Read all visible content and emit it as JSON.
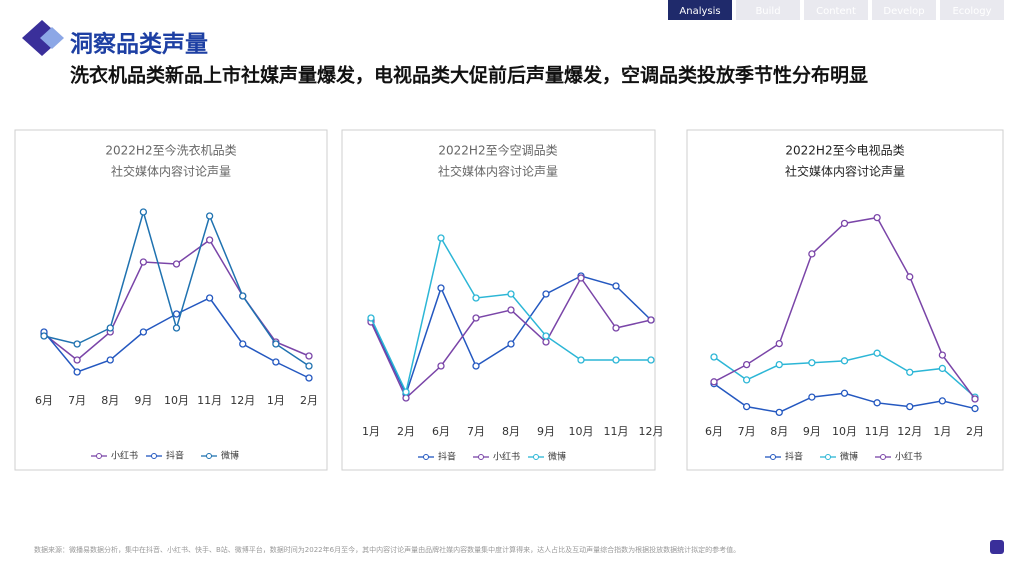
{
  "nav": [
    "Analysis",
    "Build",
    "Content",
    "Develop",
    "Ecology"
  ],
  "header": {
    "title": "洞察品类声量",
    "subtitle": "洗衣机品类新品上市社媒声量爆发，电视品类大促前后声量爆发，空调品类投放季节性分布明显"
  },
  "chart_data": [
    {
      "type": "line",
      "title": "2022H2至今洗衣机品类",
      "subtitle": "社交媒体内容讨论声量",
      "categories": [
        "6月",
        "7月",
        "8月",
        "9月",
        "10月",
        "11月",
        "12月",
        "1月",
        "2月"
      ],
      "ylim": [
        0,
        100
      ],
      "series": [
        {
          "name": "小红书",
          "color": "#7a45a8",
          "values": [
            33,
            20,
            34,
            69,
            68,
            80,
            52,
            29,
            22
          ]
        },
        {
          "name": "抖音",
          "color": "#2458c0",
          "values": [
            34,
            14,
            20,
            34,
            43,
            51,
            28,
            19,
            11
          ]
        },
        {
          "name": "微博",
          "color": "#1f72b0",
          "values": [
            32,
            28,
            36,
            94,
            36,
            92,
            52,
            28,
            17
          ]
        }
      ]
    },
    {
      "type": "line",
      "title": "2022H2至今空调品类",
      "subtitle": "社交媒体内容讨论声量",
      "categories": [
        "1月",
        "2月",
        "6月",
        "7月",
        "8月",
        "9月",
        "10月",
        "11月",
        "12月"
      ],
      "ylim": [
        0,
        100
      ],
      "series": [
        {
          "name": "抖音",
          "color": "#2458c0",
          "values": [
            50,
            13,
            66,
            27,
            38,
            63,
            72,
            67,
            50
          ]
        },
        {
          "name": "小红书",
          "color": "#7a45a8",
          "values": [
            49,
            11,
            27,
            51,
            55,
            39,
            71,
            46,
            50
          ]
        },
        {
          "name": "微博",
          "color": "#2cb6d6",
          "values": [
            51,
            14,
            91,
            61,
            63,
            42,
            30,
            30,
            30
          ]
        }
      ]
    },
    {
      "type": "line",
      "title": "2022H2至今电视品类",
      "subtitle": "社交媒体内容讨论声量",
      "categories": [
        "6月",
        "7月",
        "8月",
        "9月",
        "10月",
        "11月",
        "12月",
        "1月",
        "2月"
      ],
      "ylim": [
        0,
        110
      ],
      "series": [
        {
          "name": "抖音",
          "color": "#2458c0",
          "values": [
            19,
            7,
            4,
            12,
            14,
            9,
            7,
            10,
            6
          ]
        },
        {
          "name": "微博",
          "color": "#2cb6d6",
          "values": [
            33,
            21,
            29,
            30,
            31,
            35,
            25,
            27,
            12
          ]
        },
        {
          "name": "小红书",
          "color": "#7a45a8",
          "values": [
            20,
            29,
            40,
            87,
            103,
            106,
            75,
            34,
            11
          ]
        }
      ]
    }
  ],
  "footnote": "数据来源：微播易数据分析，集中在抖音、小红书、快手、B站、微博平台，数据时间为2022年6月至今，其中内容讨论声量由品牌社媒内容数量集中度计算得来，达人占比及互动声量综合指数为根据投放数据统计拟定的参考值。"
}
